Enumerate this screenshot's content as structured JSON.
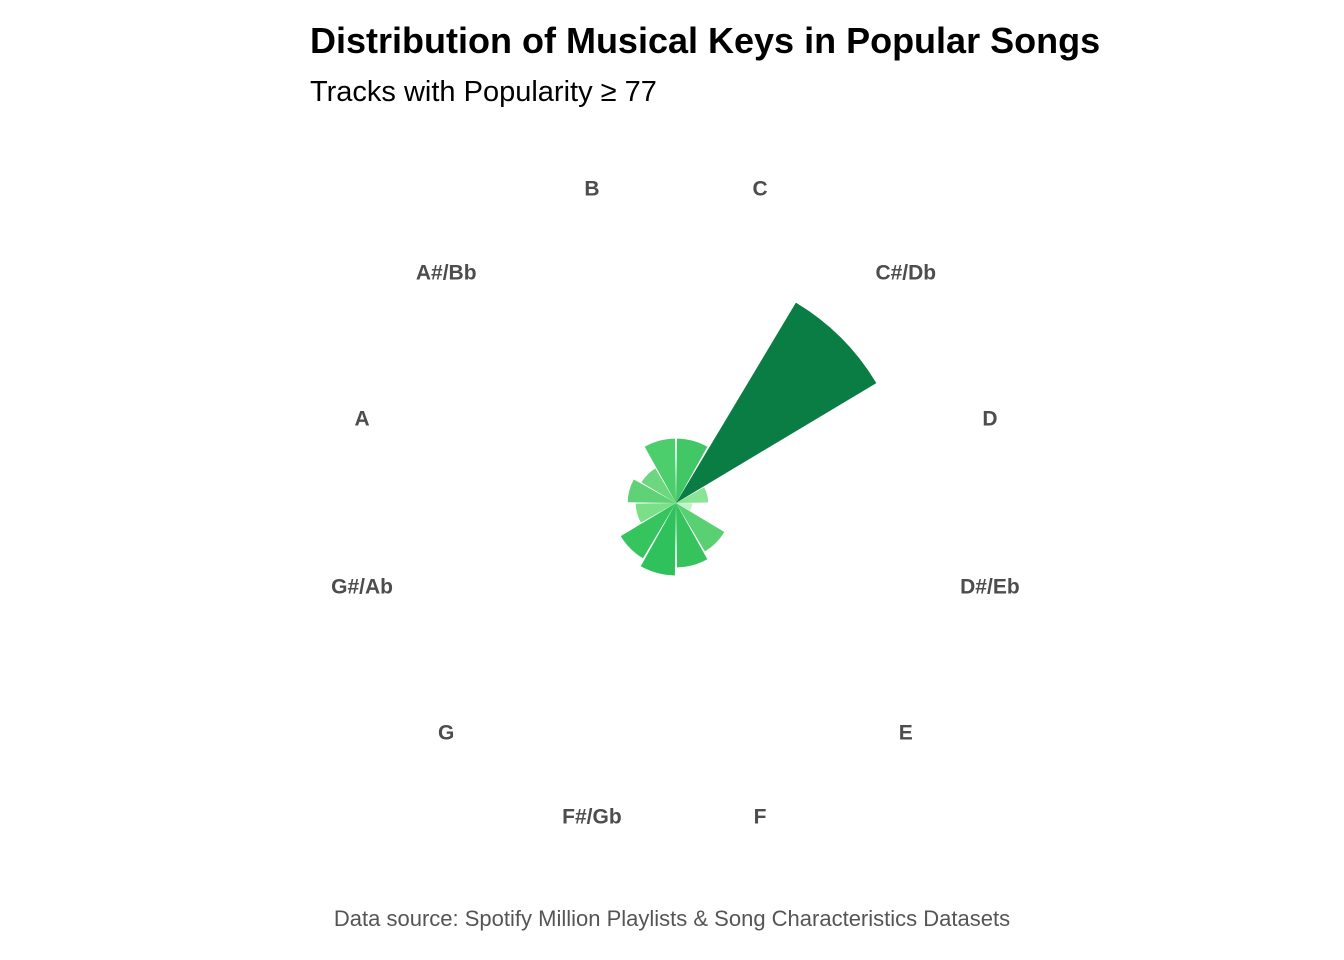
{
  "chart_data": {
    "type": "polar-bar",
    "title": "Distribution of Musical Keys in Popular Songs",
    "subtitle": "Tracks with Popularity ≥ 77",
    "caption": "Data source: Spotify Million Playlists & Song Characteristics Datasets",
    "categories": [
      "C",
      "C#/Db",
      "D",
      "D#/Eb",
      "E",
      "F",
      "F#/Gb",
      "G",
      "G#/Ab",
      "A",
      "A#/Bb",
      "B"
    ],
    "values": [
      8,
      29,
      4,
      2,
      7,
      8,
      9,
      8,
      5,
      6,
      5,
      8
    ],
    "colors": [
      "#41c765",
      "#0a7d44",
      "#8ae495",
      "#c2f5c5",
      "#59d072",
      "#36c35e",
      "#2fc15c",
      "#35c45d",
      "#7bdf8a",
      "#5fd177",
      "#6cd77f",
      "#4bce6b"
    ],
    "start_angle_deg": 0,
    "direction": "clockwise",
    "radial_axis_visible": false,
    "grid": false
  }
}
